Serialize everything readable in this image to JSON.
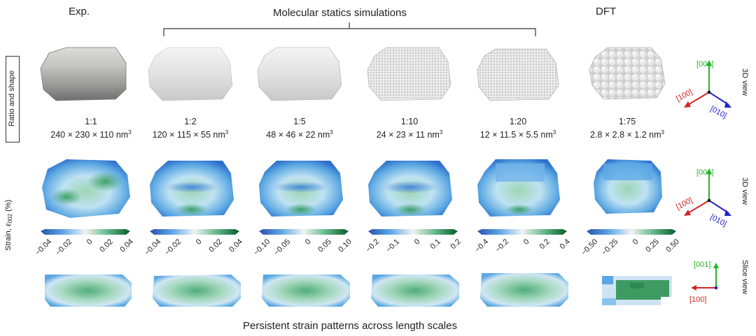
{
  "headers": {
    "exp": "Exp.",
    "ms": "Molecular statics simulations",
    "dft": "DFT"
  },
  "row_labels": {
    "shape": "Ratio and shape",
    "strain_prefix": "Strain, ",
    "strain_symbol": "ε",
    "strain_sub": "002",
    "strain_suffix": " (%)"
  },
  "columns": [
    {
      "ratio": "1:1",
      "dims": "240 × 230 × 110 nm",
      "exp": "3",
      "ticks": [
        "−0.04",
        "−0.02",
        "0",
        "0.02",
        "0.04"
      ]
    },
    {
      "ratio": "1:2",
      "dims": "120 × 115 × 55 nm",
      "exp": "3",
      "ticks": [
        "−0.04",
        "−0.02",
        "0",
        "0.02",
        "0.04"
      ]
    },
    {
      "ratio": "1:5",
      "dims": "48 × 46 × 22 nm",
      "exp": "3",
      "ticks": [
        "−0.10",
        "−0.05",
        "0",
        "0.05",
        "0.10"
      ]
    },
    {
      "ratio": "1:10",
      "dims": "24 × 23 × 11 nm",
      "exp": "3",
      "ticks": [
        "−0.2",
        "−0.1",
        "0",
        "0.1",
        "0.2"
      ]
    },
    {
      "ratio": "1:20",
      "dims": "12 × 11.5 × 5.5 nm",
      "exp": "3",
      "ticks": [
        "−0.4",
        "−0.2",
        "0",
        "0.2",
        "0.4"
      ]
    },
    {
      "ratio": "1:75",
      "dims": "2.8 × 2.8 × 1.2 nm",
      "exp": "3",
      "ticks": [
        "−0.50",
        "−0.25",
        "0",
        "0.25",
        "0.50"
      ]
    }
  ],
  "axes": {
    "z": "[001]",
    "x": "[100]",
    "y": "[010]"
  },
  "side_labels": {
    "view3d_1": "3D view",
    "view3d_2": "3D view",
    "slice": "Slice view"
  },
  "footer": "Persistent strain patterns across length scales",
  "colors": {
    "z_axis": "#27b327",
    "x_axis": "#d22424",
    "y_axis": "#2222c8",
    "strain_neg": "#2a4fb0",
    "strain_mid": "#f2f2f2",
    "strain_pos": "#0c5a2a"
  }
}
